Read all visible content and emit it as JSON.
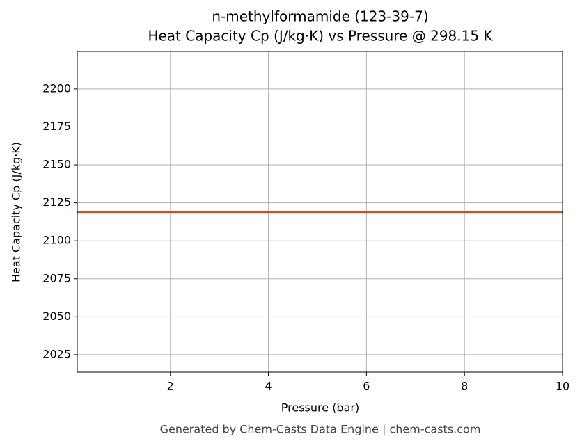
{
  "chart_data": {
    "type": "line",
    "title": "n-methylformamide (123-39-7)",
    "subtitle": "Heat Capacity Cp (J/kg·K) vs Pressure @ 298.15 K",
    "x_label": "Pressure (bar)",
    "y_label": "Heat Capacity Cp (J/kg·K)",
    "footer": "Generated by Chem-Casts Data Engine | chem-casts.com",
    "x": [
      0.1,
      2,
      4,
      6,
      8,
      10
    ],
    "series": [
      {
        "name": "Cp",
        "color": "#c4532b",
        "values": [
          2119,
          2119,
          2119,
          2119,
          2119,
          2119
        ]
      }
    ],
    "xlim": [
      0.1,
      10
    ],
    "xticks": [
      2,
      4,
      6,
      8,
      10
    ],
    "ylim": [
      2013.5,
      2224.7
    ],
    "yticks": [
      2025,
      2050,
      2075,
      2100,
      2125,
      2150,
      2175,
      2200
    ],
    "grid": true
  }
}
